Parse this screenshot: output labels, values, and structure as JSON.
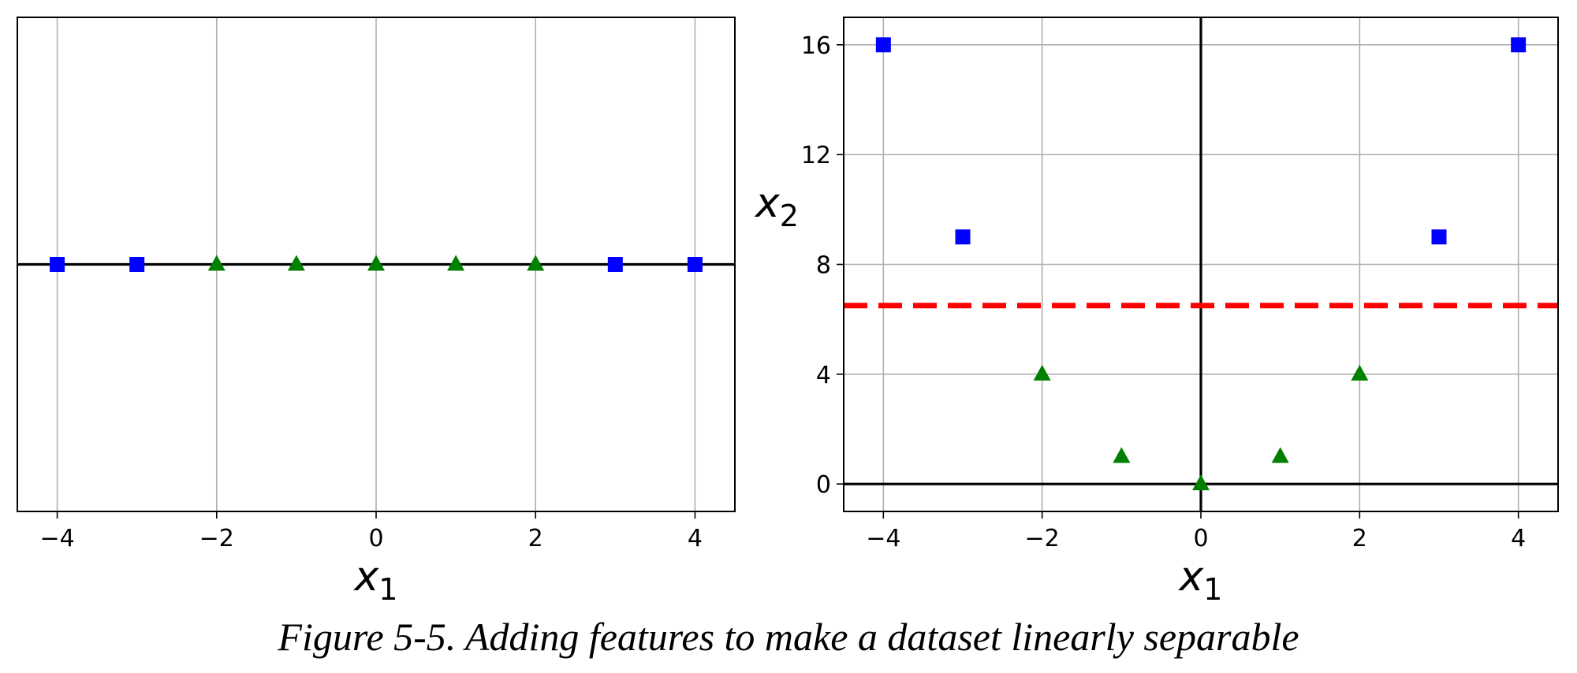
{
  "caption": "Figure 5-5. Adding features to make a dataset linearly separable",
  "chart_data": [
    {
      "type": "scatter",
      "xlim": [
        -4.5,
        4.5
      ],
      "ylim": [
        -0.2,
        0.2
      ],
      "grid": true,
      "yticks_visible": false,
      "xticks": [
        -4,
        -2,
        0,
        2,
        4
      ],
      "xtick_labels": [
        "−4",
        "−2",
        "0",
        "2",
        "4"
      ],
      "xlabel": {
        "base": "x",
        "sub": "1"
      },
      "ylabel": null,
      "reference_lines": [
        {
          "orientation": "horizontal",
          "value": 0,
          "color": "#000000"
        }
      ],
      "series": [
        {
          "marker": "square",
          "color": "#0000ff",
          "x": [
            -4,
            -3,
            3,
            4
          ],
          "y": [
            0,
            0,
            0,
            0
          ]
        },
        {
          "marker": "triangle",
          "color": "#008000",
          "x": [
            -2,
            -1,
            0,
            1,
            2
          ],
          "y": [
            0,
            0,
            0,
            0,
            0
          ]
        }
      ]
    },
    {
      "type": "scatter",
      "xlim": [
        -4.5,
        4.5
      ],
      "ylim": [
        -1,
        17
      ],
      "grid": true,
      "xticks": [
        -4,
        -2,
        0,
        2,
        4
      ],
      "xtick_labels": [
        "−4",
        "−2",
        "0",
        "2",
        "4"
      ],
      "yticks": [
        0,
        4,
        8,
        12,
        16
      ],
      "ytick_labels": [
        "0",
        "4",
        "8",
        "12",
        "16"
      ],
      "xlabel": {
        "base": "x",
        "sub": "1"
      },
      "ylabel": {
        "base": "x",
        "sub": "2"
      },
      "reference_lines": [
        {
          "orientation": "horizontal",
          "value": 0,
          "color": "#000000"
        },
        {
          "orientation": "vertical",
          "value": 0,
          "color": "#000000"
        }
      ],
      "decision_boundary": {
        "orientation": "horizontal",
        "value": 6.5,
        "color": "#ff0000",
        "style": "dashed"
      },
      "series": [
        {
          "marker": "square",
          "color": "#0000ff",
          "x": [
            -4,
            -3,
            3,
            4
          ],
          "y": [
            16,
            9,
            9,
            16
          ]
        },
        {
          "marker": "triangle",
          "color": "#008000",
          "x": [
            -2,
            -1,
            0,
            1,
            2
          ],
          "y": [
            4,
            1,
            0,
            1,
            4
          ]
        }
      ]
    }
  ]
}
